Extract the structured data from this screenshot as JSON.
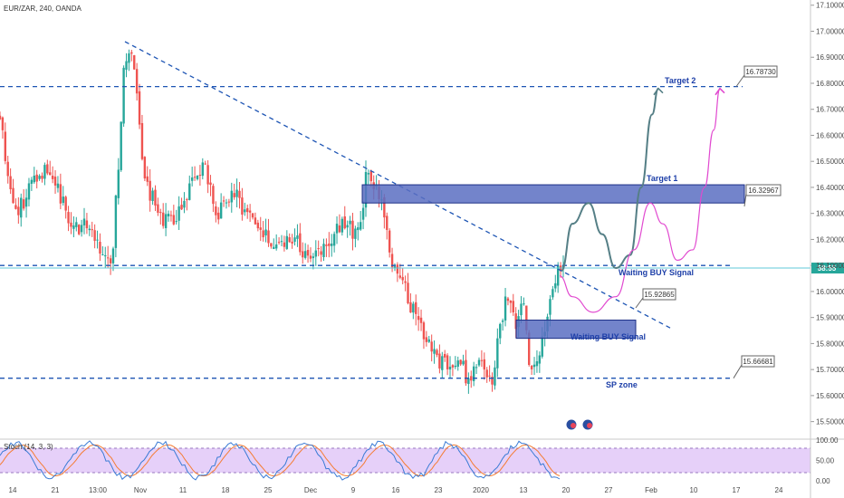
{
  "header": {
    "symbol_label": "EUR/ZAR, 240, OANDA"
  },
  "colors": {
    "up": "#26a69a",
    "down": "#ef5350",
    "level": "#1e55b4",
    "zone_fill": "#5b6fc2",
    "zone_stroke": "#1c2f86",
    "path_dark": "#557f86",
    "path_pink": "#e14ad0",
    "price_line": "#5fc9d8",
    "stoch_band": "#d6b0f5",
    "stoch_k": "#3a7bd5",
    "stoch_d": "#f57c32"
  },
  "chart_data": {
    "type": "candlestick",
    "symbol": "EUR/ZAR",
    "timeframe": "240",
    "source": "OANDA",
    "y_ticks": [
      "17.10000",
      "17.00000",
      "16.90000",
      "16.80000",
      "16.70000",
      "16.60000",
      "16.50000",
      "16.40000",
      "16.30000",
      "16.20000",
      "16.10000",
      "16.00000",
      "15.90000",
      "15.80000",
      "15.70000",
      "15.60000",
      "15.50000"
    ],
    "ylim": [
      15.45,
      17.12
    ],
    "x_ticks": [
      "14",
      "21",
      "13:00",
      "Nov",
      "11",
      "18",
      "25",
      "Dec",
      "9",
      "16",
      "23",
      "2020",
      "13",
      "20",
      "27",
      "Feb",
      "10",
      "17",
      "24"
    ],
    "current_price_label": "58:55",
    "current_price": 16.09,
    "trendline": {
      "from": {
        "bar": 138,
        "price": 16.96
      },
      "to": {
        "bar": 740,
        "price": 15.86
      }
    },
    "levels": [
      {
        "name": "Target 2",
        "price": 16.7873,
        "label": "16.78730"
      },
      {
        "name": "Waiting BUY Signal",
        "price": 16.1,
        "label": ""
      },
      {
        "name": "SP zone",
        "price": 15.66681,
        "label": "15.66681"
      }
    ],
    "zones": [
      {
        "name": "Target 1",
        "top": 16.41,
        "bottom": 16.34,
        "label": "16.32967"
      },
      {
        "name": "Waiting BUY Signal",
        "top": 15.89,
        "bottom": 15.82,
        "label": "15.92865"
      }
    ],
    "annotations": [
      "Target 2",
      "Target 1",
      "Waiting BUY  Signal",
      "Waiting BUY  Signal",
      "SP zone"
    ],
    "candles": {
      "x_start": 0,
      "x_end": 622,
      "count": 215,
      "seed": 11,
      "anchors": [
        [
          0,
          16.68
        ],
        [
          10,
          16.42
        ],
        [
          20,
          16.3
        ],
        [
          38,
          16.45
        ],
        [
          55,
          16.48
        ],
        [
          78,
          16.25
        ],
        [
          100,
          16.25
        ],
        [
          118,
          16.1
        ],
        [
          124,
          16.14
        ],
        [
          130,
          16.45
        ],
        [
          137,
          16.88
        ],
        [
          143,
          16.92
        ],
        [
          150,
          16.8
        ],
        [
          158,
          16.45
        ],
        [
          175,
          16.3
        ],
        [
          192,
          16.25
        ],
        [
          210,
          16.4
        ],
        [
          226,
          16.48
        ],
        [
          240,
          16.3
        ],
        [
          258,
          16.38
        ],
        [
          280,
          16.26
        ],
        [
          300,
          16.18
        ],
        [
          322,
          16.22
        ],
        [
          340,
          16.12
        ],
        [
          362,
          16.2
        ],
        [
          380,
          16.26
        ],
        [
          396,
          16.22
        ],
        [
          405,
          16.45
        ],
        [
          415,
          16.38
        ],
        [
          425,
          16.3
        ],
        [
          432,
          16.1
        ],
        [
          445,
          16.02
        ],
        [
          460,
          15.9
        ],
        [
          478,
          15.76
        ],
        [
          495,
          15.7
        ],
        [
          512,
          15.7
        ],
        [
          518,
          15.65
        ],
        [
          528,
          15.72
        ],
        [
          540,
          15.68
        ],
        [
          545,
          15.66
        ],
        [
          550,
          15.85
        ],
        [
          560,
          15.98
        ],
        [
          570,
          15.88
        ],
        [
          578,
          15.98
        ],
        [
          583,
          15.74
        ],
        [
          590,
          15.7
        ],
        [
          598,
          15.78
        ],
        [
          605,
          15.92
        ],
        [
          612,
          16.05
        ],
        [
          622,
          16.09
        ]
      ]
    },
    "projected_paths": [
      {
        "name": "bullish path",
        "color": "#557f86",
        "points": [
          [
            620,
            16.08
          ],
          [
            632,
            16.26
          ],
          [
            650,
            16.34
          ],
          [
            665,
            16.22
          ],
          [
            680,
            16.09
          ],
          [
            696,
            16.14
          ],
          [
            708,
            16.4
          ],
          [
            720,
            16.68
          ],
          [
            727,
            16.78
          ]
        ]
      },
      {
        "name": "alternative path",
        "color": "#e14ad0",
        "points": [
          [
            618,
            16.06
          ],
          [
            632,
            15.98
          ],
          [
            655,
            15.92
          ],
          [
            680,
            15.98
          ],
          [
            700,
            16.16
          ],
          [
            718,
            16.34
          ],
          [
            732,
            16.26
          ],
          [
            748,
            16.12
          ],
          [
            765,
            16.16
          ],
          [
            778,
            16.4
          ],
          [
            788,
            16.62
          ],
          [
            795,
            16.78
          ]
        ]
      }
    ]
  },
  "stoch": {
    "label": "Stoch (14, 3, 3)",
    "y_ticks": [
      "100.00",
      "50.00",
      "0.00"
    ],
    "levels": [
      80,
      20
    ],
    "seed": 5
  }
}
